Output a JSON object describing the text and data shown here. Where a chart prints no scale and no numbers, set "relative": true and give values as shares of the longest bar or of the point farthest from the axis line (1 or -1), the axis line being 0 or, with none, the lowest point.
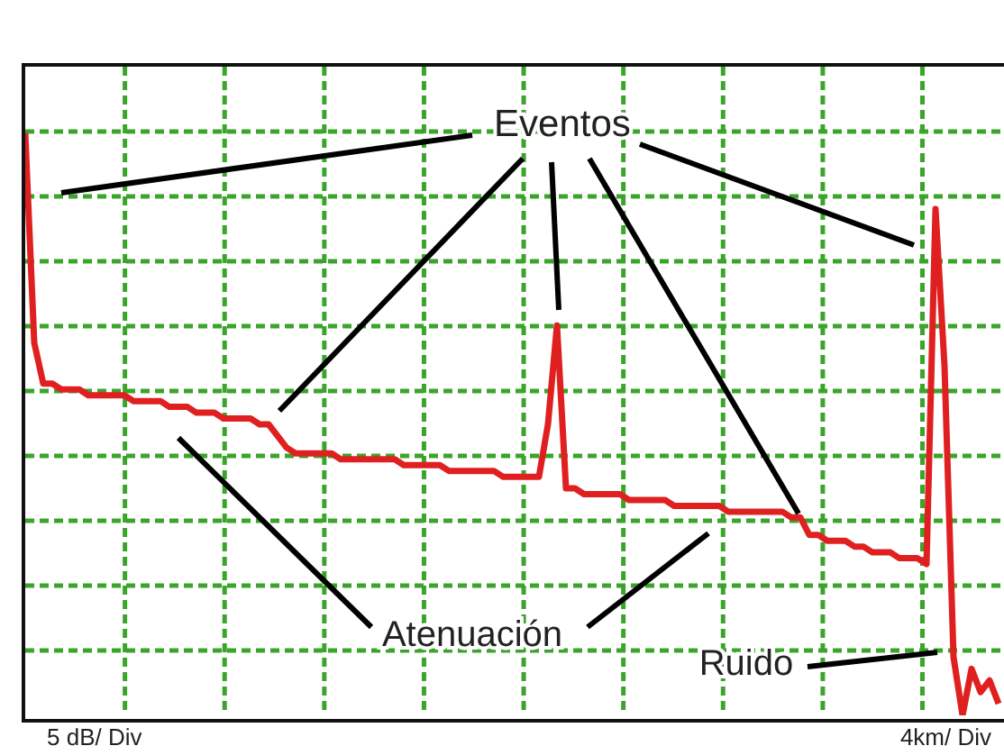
{
  "chart_data": {
    "type": "line",
    "relative": true,
    "grid": true,
    "categories": [
      null,
      null,
      null,
      null,
      null,
      null,
      null,
      null,
      null,
      null,
      null,
      null,
      null,
      null,
      null,
      null,
      null,
      null,
      null,
      null,
      null,
      null,
      null,
      null,
      null,
      null,
      null,
      null,
      null,
      null,
      null,
      null,
      null,
      null,
      null,
      null,
      null,
      null,
      null,
      null,
      null,
      null,
      null,
      null,
      null,
      null,
      null,
      null,
      null,
      null,
      null,
      null,
      null,
      null,
      null,
      null,
      null,
      null,
      null,
      null,
      null,
      null,
      null,
      null,
      null,
      null,
      null,
      null,
      null,
      null,
      null,
      null,
      null,
      null,
      null,
      null,
      null,
      null,
      null,
      null,
      null,
      null,
      null,
      null,
      null,
      null,
      null,
      null,
      null,
      null,
      null,
      null,
      null,
      null,
      null,
      null,
      null,
      null,
      null,
      null,
      null,
      null,
      null,
      null,
      null,
      null,
      null,
      null,
      null
    ],
    "series": [
      {
        "color": "#e02020",
        "values": [
          1.0,
          0.64,
          0.57,
          0.57,
          0.56,
          0.56,
          0.56,
          0.55,
          0.55,
          0.55,
          0.55,
          0.55,
          0.54,
          0.54,
          0.54,
          0.54,
          0.53,
          0.53,
          0.53,
          0.52,
          0.52,
          0.52,
          0.51,
          0.51,
          0.51,
          0.51,
          0.5,
          0.5,
          0.48,
          0.46,
          0.45,
          0.45,
          0.45,
          0.45,
          0.45,
          0.44,
          0.44,
          0.44,
          0.44,
          0.44,
          0.44,
          0.44,
          0.43,
          0.43,
          0.43,
          0.43,
          0.43,
          0.42,
          0.42,
          0.42,
          0.42,
          0.42,
          0.42,
          0.41,
          0.41,
          0.41,
          0.41,
          0.41,
          0.5,
          0.67,
          0.39,
          0.39,
          0.38,
          0.38,
          0.38,
          0.38,
          0.38,
          0.37,
          0.37,
          0.37,
          0.37,
          0.37,
          0.36,
          0.36,
          0.36,
          0.36,
          0.36,
          0.36,
          0.35,
          0.35,
          0.35,
          0.35,
          0.35,
          0.35,
          0.35,
          0.34,
          0.34,
          0.31,
          0.31,
          0.3,
          0.3,
          0.3,
          0.29,
          0.29,
          0.28,
          0.28,
          0.28,
          0.27,
          0.27,
          0.27,
          0.26,
          0.87,
          0.6,
          0.1,
          0.0,
          0.08,
          0.04,
          0.06,
          0.02
        ]
      }
    ],
    "annotations": [
      "Eventos",
      "Atenuación",
      "Ruido",
      "5 dB/ Div",
      "4km/ Div"
    ]
  }
}
